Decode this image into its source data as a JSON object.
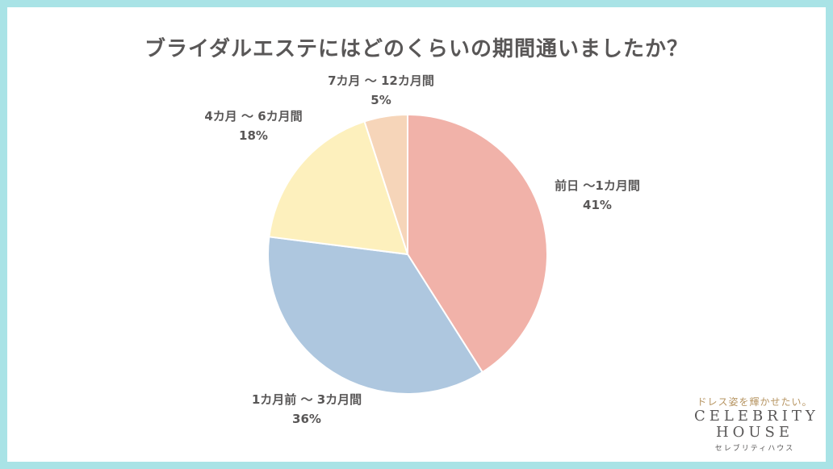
{
  "chart_data": {
    "type": "pie",
    "title": "ブライダルエステにはどのくらいの期間通いましたか？",
    "slices": [
      {
        "label": "前日 〜1カ月間",
        "value": 41,
        "value_label": "41%",
        "color": "#f1b2a9"
      },
      {
        "label": "1カ月前 〜 3カ月間",
        "value": 36,
        "value_label": "36%",
        "color": "#aec7df"
      },
      {
        "label": "4カ月 〜 6カ月間",
        "value": 18,
        "value_label": "18%",
        "color": "#fdf0bd"
      },
      {
        "label": "7カ月 〜 12カ月間",
        "value": 5,
        "value_label": "5%",
        "color": "#f6d5b9"
      }
    ],
    "start_angle_deg": 0,
    "direction": "clockwise"
  },
  "logo": {
    "tagline": "ドレス姿を輝かせたい。",
    "line1": "CELEBRITY",
    "line2": "HOUSE",
    "kana": "セレブリティハウス"
  },
  "colors": {
    "frame": "#a9e3e6",
    "text": "#595757",
    "tagline": "#b69461"
  }
}
